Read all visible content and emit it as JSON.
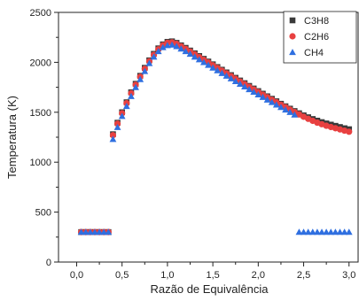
{
  "chart_data": {
    "type": "scatter",
    "xlabel": "Razão de Equivalência",
    "ylabel": "Temperatura (K)",
    "xlim": [
      -0.2,
      3.1
    ],
    "ylim": [
      0,
      2500
    ],
    "xticks": [
      0.0,
      0.5,
      1.0,
      1.5,
      2.0,
      2.5,
      3.0
    ],
    "xtick_labels": [
      "0,0",
      "0,5",
      "1,0",
      "1,5",
      "2,0",
      "2,5",
      "3,0"
    ],
    "yticks": [
      0,
      500,
      1000,
      1500,
      2000,
      2500
    ],
    "ytick_labels": [
      "0",
      "500",
      "1000",
      "1500",
      "2000",
      "2500"
    ],
    "grid": false,
    "legend_position": "top-right",
    "series": [
      {
        "name": "C3H8",
        "marker": "square",
        "color": "#3a3a3a",
        "x": [
          0.05,
          0.1,
          0.15,
          0.2,
          0.25,
          0.3,
          0.35,
          0.4,
          0.45,
          0.5,
          0.55,
          0.6,
          0.65,
          0.7,
          0.75,
          0.8,
          0.85,
          0.9,
          0.95,
          1.0,
          1.05,
          1.1,
          1.15,
          1.2,
          1.25,
          1.3,
          1.35,
          1.4,
          1.45,
          1.5,
          1.55,
          1.6,
          1.65,
          1.7,
          1.75,
          1.8,
          1.85,
          1.9,
          1.95,
          2.0,
          2.05,
          2.1,
          2.15,
          2.2,
          2.25,
          2.3,
          2.35,
          2.4,
          2.45,
          2.5,
          2.55,
          2.6,
          2.65,
          2.7,
          2.75,
          2.8,
          2.85,
          2.9,
          2.95,
          3.0
        ],
        "y": [
          300,
          300,
          300,
          300,
          300,
          300,
          300,
          1280,
          1395,
          1500,
          1600,
          1700,
          1785,
          1865,
          1945,
          2020,
          2085,
          2140,
          2180,
          2205,
          2210,
          2195,
          2170,
          2145,
          2118,
          2090,
          2063,
          2035,
          2008,
          1980,
          1953,
          1926,
          1899,
          1872,
          1845,
          1818,
          1791,
          1764,
          1738,
          1712,
          1686,
          1660,
          1635,
          1610,
          1585,
          1560,
          1536,
          1512,
          1490,
          1469,
          1450,
          1432,
          1416,
          1401,
          1388,
          1376,
          1364,
          1352,
          1340,
          1330
        ]
      },
      {
        "name": "C2H6",
        "marker": "circle",
        "color": "#e84040",
        "x": [
          0.05,
          0.1,
          0.15,
          0.2,
          0.25,
          0.3,
          0.35,
          0.4,
          0.45,
          0.5,
          0.55,
          0.6,
          0.65,
          0.7,
          0.75,
          0.8,
          0.85,
          0.9,
          0.95,
          1.0,
          1.05,
          1.1,
          1.15,
          1.2,
          1.25,
          1.3,
          1.35,
          1.4,
          1.45,
          1.5,
          1.55,
          1.6,
          1.65,
          1.7,
          1.75,
          1.8,
          1.85,
          1.9,
          1.95,
          2.0,
          2.05,
          2.1,
          2.15,
          2.2,
          2.25,
          2.3,
          2.35,
          2.4,
          2.45,
          2.5,
          2.55,
          2.6,
          2.65,
          2.7,
          2.75,
          2.8,
          2.85,
          2.9,
          2.95,
          3.0
        ],
        "y": [
          300,
          300,
          300,
          300,
          300,
          300,
          300,
          1270,
          1385,
          1490,
          1590,
          1690,
          1775,
          1855,
          1935,
          2010,
          2075,
          2130,
          2170,
          2195,
          2200,
          2185,
          2160,
          2135,
          2108,
          2080,
          2053,
          2025,
          1998,
          1970,
          1943,
          1916,
          1889,
          1862,
          1835,
          1808,
          1781,
          1754,
          1728,
          1702,
          1676,
          1650,
          1625,
          1600,
          1575,
          1550,
          1526,
          1502,
          1478,
          1455,
          1434,
          1414,
          1396,
          1380,
          1365,
          1352,
          1340,
          1328,
          1316,
          1305
        ]
      },
      {
        "name": "CH4",
        "marker": "triangle",
        "color": "#2f6fe0",
        "x": [
          0.05,
          0.1,
          0.15,
          0.2,
          0.25,
          0.3,
          0.35,
          0.4,
          0.45,
          0.5,
          0.55,
          0.6,
          0.65,
          0.7,
          0.75,
          0.8,
          0.85,
          0.9,
          0.95,
          1.0,
          1.05,
          1.1,
          1.15,
          1.2,
          1.25,
          1.3,
          1.35,
          1.4,
          1.45,
          1.5,
          1.55,
          1.6,
          1.65,
          1.7,
          1.75,
          1.8,
          1.85,
          1.9,
          1.95,
          2.0,
          2.05,
          2.1,
          2.15,
          2.2,
          2.25,
          2.3,
          2.35,
          2.4,
          2.45,
          2.5,
          2.55,
          2.6,
          2.65,
          2.7,
          2.75,
          2.8,
          2.85,
          2.9,
          2.95,
          3.0
        ],
        "y": [
          300,
          300,
          300,
          300,
          300,
          300,
          300,
          1230,
          1350,
          1460,
          1560,
          1660,
          1750,
          1830,
          1910,
          1990,
          2055,
          2110,
          2150,
          2170,
          2175,
          2160,
          2135,
          2110,
          2083,
          2055,
          2028,
          2000,
          1973,
          1945,
          1918,
          1891,
          1864,
          1837,
          1810,
          1783,
          1756,
          1729,
          1703,
          1677,
          1651,
          1625,
          1600,
          1575,
          1550,
          1525,
          1500,
          1475,
          300,
          300,
          300,
          300,
          300,
          300,
          300,
          300,
          300,
          300,
          300,
          300
        ]
      }
    ]
  }
}
